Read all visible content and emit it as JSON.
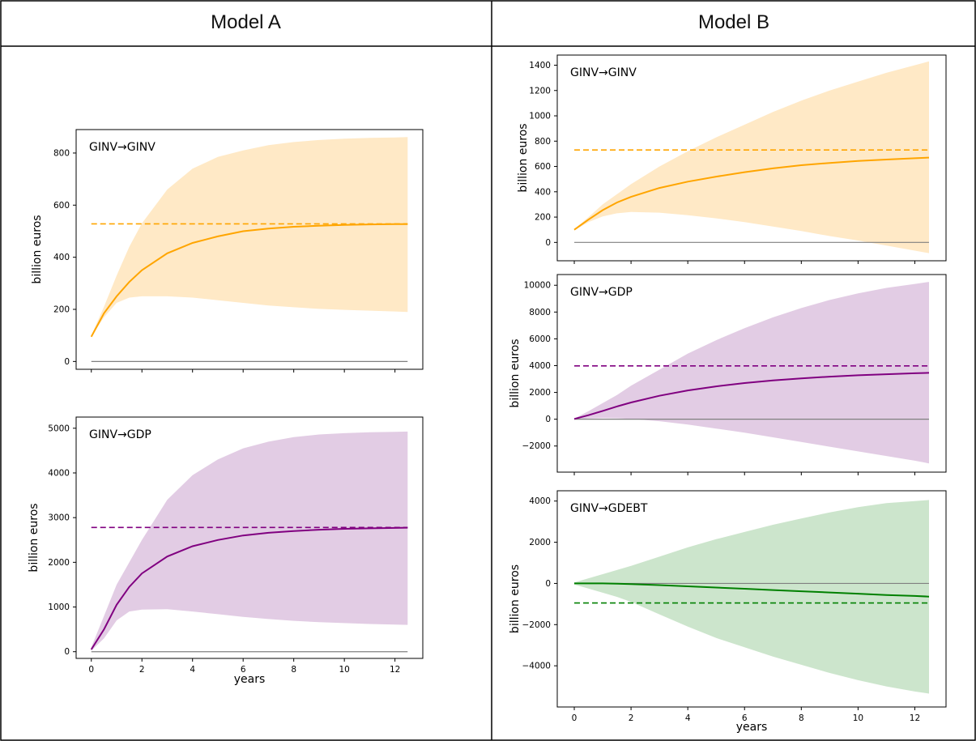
{
  "columns": {
    "a": "Model A",
    "b": "Model B"
  },
  "colors": {
    "orange": "#FFA500",
    "orange_fill": "#FFE9C6",
    "purple": "#800080",
    "purple_fill": "#E2CCE4",
    "green": "#008000",
    "green_fill": "#CCE5CC",
    "zero_line": "#808080",
    "axis": "#000000"
  },
  "chart_data": [
    {
      "id": "a1",
      "model": "Model A",
      "type": "line",
      "title": "GINV→GINV",
      "xlabel": "",
      "ylabel": "billion euros",
      "xlim": [
        -0.6,
        13.1
      ],
      "ylim": [
        -30,
        890
      ],
      "yticks": [
        0,
        200,
        400,
        600,
        800
      ],
      "xticks": [
        0,
        2,
        4,
        6,
        8,
        10,
        12
      ],
      "show_xtick_labels": false,
      "color": "orange",
      "fill": "orange_fill",
      "x": [
        0,
        0.5,
        1,
        1.5,
        2,
        3,
        4,
        5,
        6,
        7,
        8,
        9,
        10,
        11,
        12,
        12.5
      ],
      "median": [
        95,
        185,
        250,
        305,
        350,
        415,
        455,
        480,
        500,
        510,
        517,
        521,
        524,
        526,
        527,
        527
      ],
      "lower": [
        95,
        170,
        225,
        245,
        250,
        250,
        245,
        235,
        225,
        215,
        208,
        202,
        198,
        195,
        192,
        190
      ],
      "upper": [
        100,
        210,
        330,
        440,
        530,
        660,
        740,
        785,
        810,
        830,
        842,
        850,
        855,
        858,
        860,
        861
      ],
      "long_run": 528
    },
    {
      "id": "a2",
      "model": "Model A",
      "type": "line",
      "title": "GINV→GDP",
      "xlabel": "years",
      "ylabel": "billion euros",
      "xlim": [
        -0.6,
        13.1
      ],
      "ylim": [
        -150,
        5250
      ],
      "yticks": [
        0,
        1000,
        2000,
        3000,
        4000,
        5000
      ],
      "xticks": [
        0,
        2,
        4,
        6,
        8,
        10,
        12
      ],
      "show_xtick_labels": true,
      "color": "purple",
      "fill": "purple_fill",
      "x": [
        0,
        0.5,
        1,
        1.5,
        2,
        3,
        4,
        5,
        6,
        7,
        8,
        9,
        10,
        11,
        12,
        12.5
      ],
      "median": [
        50,
        500,
        1050,
        1450,
        1750,
        2130,
        2360,
        2500,
        2600,
        2660,
        2700,
        2730,
        2750,
        2760,
        2770,
        2775
      ],
      "lower": [
        20,
        300,
        700,
        900,
        940,
        950,
        900,
        840,
        780,
        730,
        690,
        660,
        640,
        620,
        605,
        600
      ],
      "upper": [
        100,
        800,
        1500,
        2000,
        2500,
        3400,
        3950,
        4300,
        4550,
        4700,
        4800,
        4860,
        4890,
        4910,
        4920,
        4925
      ],
      "long_run": 2780
    },
    {
      "id": "b1",
      "model": "Model B",
      "type": "line",
      "title": "GINV→GINV",
      "xlabel": "",
      "ylabel": "billion euros",
      "xlim": [
        -0.6,
        13.1
      ],
      "ylim": [
        -145,
        1480
      ],
      "yticks": [
        0,
        200,
        400,
        600,
        800,
        1000,
        1200,
        1400
      ],
      "xticks": [
        0,
        2,
        4,
        6,
        8,
        10,
        12
      ],
      "show_xtick_labels": false,
      "color": "orange",
      "fill": "orange_fill",
      "x": [
        0,
        0.5,
        1,
        1.5,
        2,
        3,
        4,
        5,
        6,
        7,
        8,
        9,
        10,
        11,
        12,
        12.5
      ],
      "median": [
        100,
        180,
        255,
        315,
        360,
        430,
        480,
        520,
        555,
        585,
        610,
        628,
        643,
        655,
        665,
        670
      ],
      "lower": [
        95,
        160,
        205,
        230,
        240,
        235,
        215,
        190,
        160,
        125,
        90,
        50,
        15,
        -25,
        -65,
        -85
      ],
      "upper": [
        105,
        200,
        300,
        380,
        460,
        600,
        720,
        830,
        930,
        1030,
        1120,
        1200,
        1270,
        1340,
        1400,
        1430
      ],
      "long_run": 730
    },
    {
      "id": "b2",
      "model": "Model B",
      "type": "line",
      "title": "GINV→GDP",
      "xlabel": "",
      "ylabel": "billion euros",
      "xlim": [
        -0.6,
        13.1
      ],
      "ylim": [
        -3950,
        10800
      ],
      "yticks": [
        -2000,
        0,
        2000,
        4000,
        6000,
        8000,
        10000
      ],
      "xticks": [
        0,
        2,
        4,
        6,
        8,
        10,
        12
      ],
      "show_xtick_labels": false,
      "color": "purple",
      "fill": "purple_fill",
      "x": [
        0,
        0.5,
        1,
        1.5,
        2,
        3,
        4,
        5,
        6,
        7,
        8,
        9,
        10,
        11,
        12,
        12.5
      ],
      "median": [
        20,
        300,
        620,
        950,
        1250,
        1750,
        2150,
        2450,
        2700,
        2900,
        3050,
        3180,
        3280,
        3360,
        3430,
        3460
      ],
      "lower": [
        0,
        50,
        80,
        70,
        20,
        -150,
        -400,
        -700,
        -1000,
        -1350,
        -1700,
        -2050,
        -2400,
        -2750,
        -3100,
        -3300
      ],
      "upper": [
        40,
        600,
        1200,
        1800,
        2500,
        3700,
        4900,
        5900,
        6800,
        7600,
        8300,
        8900,
        9400,
        9800,
        10100,
        10250
      ],
      "long_run": 3980
    },
    {
      "id": "b3",
      "model": "Model B",
      "type": "line",
      "title": "GINV→GDEBT",
      "xlabel": "years",
      "ylabel": "billion euros",
      "xlim": [
        -0.6,
        13.1
      ],
      "ylim": [
        -6000,
        4500
      ],
      "yticks": [
        -4000,
        -2000,
        0,
        2000,
        4000
      ],
      "xticks": [
        0,
        2,
        4,
        6,
        8,
        10,
        12
      ],
      "show_xtick_labels": true,
      "color": "green",
      "fill": "green_fill",
      "x": [
        0,
        0.5,
        1,
        1.5,
        2,
        3,
        4,
        5,
        6,
        7,
        8,
        9,
        10,
        11,
        12,
        12.5
      ],
      "median": [
        0,
        0,
        0,
        -10,
        -30,
        -80,
        -140,
        -200,
        -260,
        -320,
        -380,
        -440,
        -500,
        -560,
        -610,
        -640
      ],
      "lower": [
        -50,
        -250,
        -450,
        -650,
        -900,
        -1500,
        -2100,
        -2650,
        -3100,
        -3550,
        -3950,
        -4350,
        -4700,
        -5000,
        -5250,
        -5350
      ],
      "upper": [
        50,
        250,
        450,
        650,
        850,
        1300,
        1750,
        2150,
        2500,
        2850,
        3150,
        3450,
        3700,
        3900,
        4000,
        4050
      ],
      "long_run": -950
    }
  ]
}
